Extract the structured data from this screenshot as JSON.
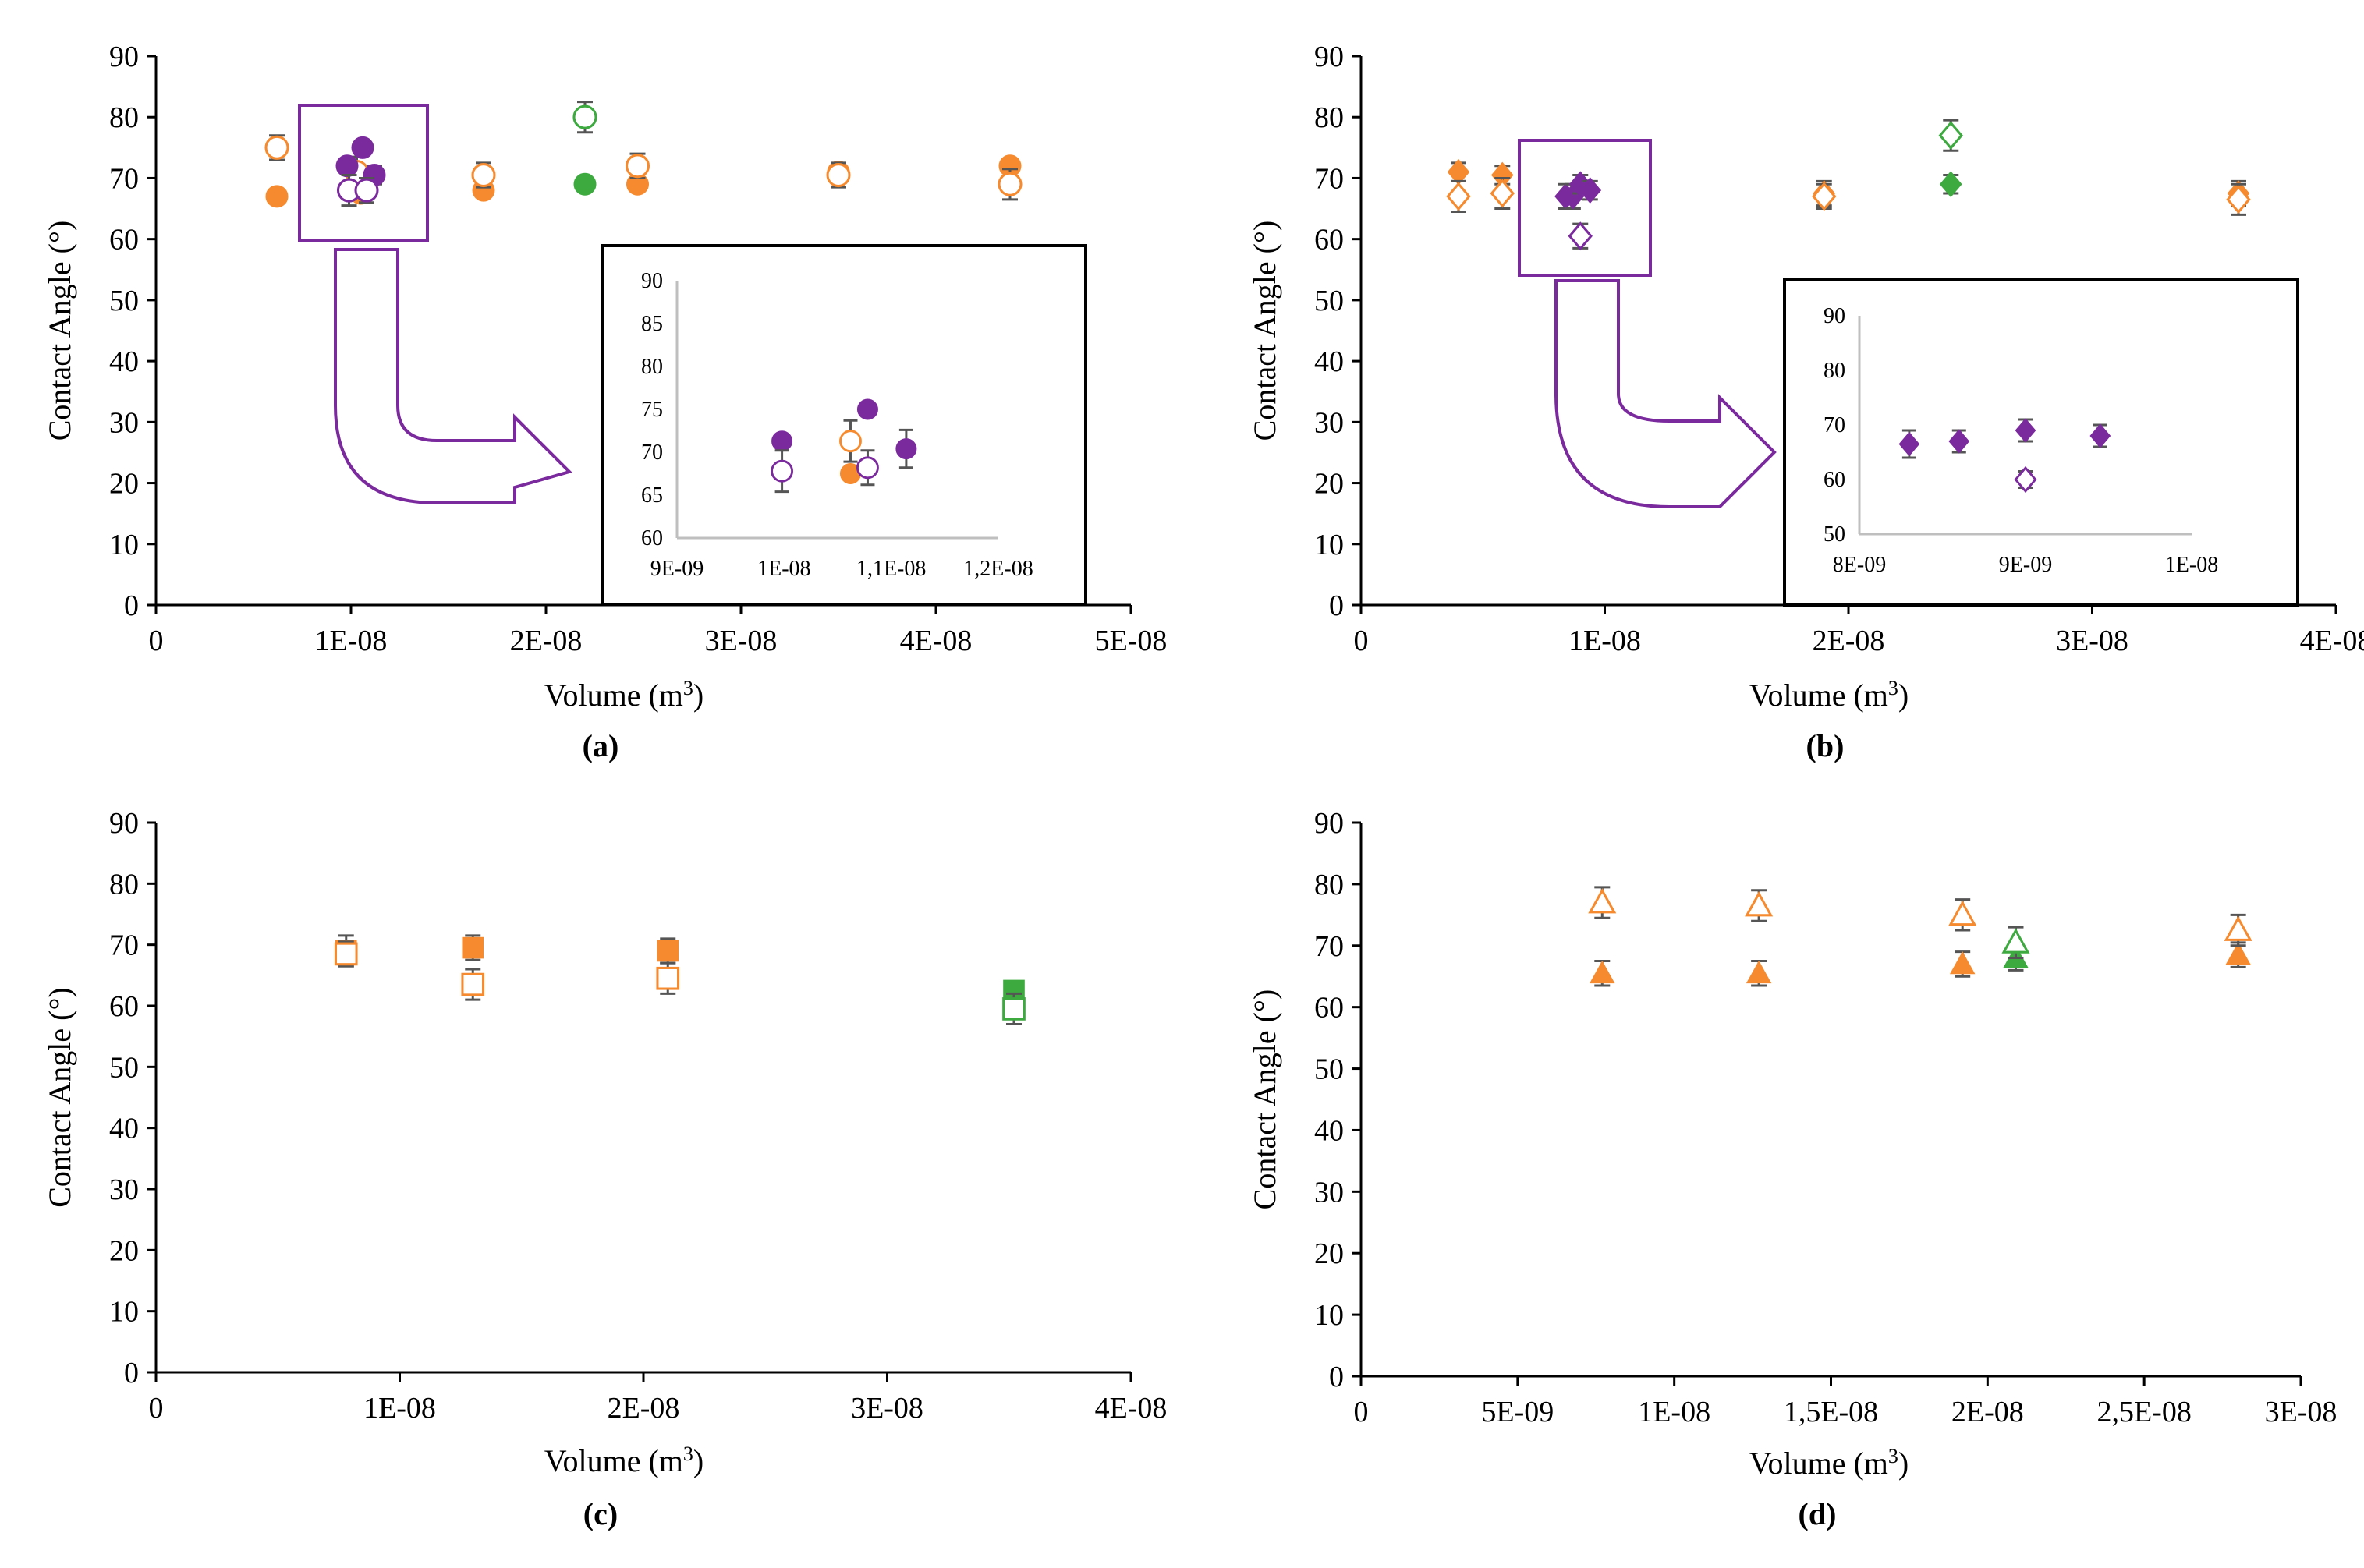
{
  "colors": {
    "orange": "#F68A2E",
    "green": "#3DAA3F",
    "purple": "#7B2A9E",
    "error": "#555555",
    "inset_axis": "#BFBFBF"
  },
  "chart_data": [
    {
      "panel": "a",
      "caption": "(a)",
      "type": "scatter",
      "marker": "circle",
      "xlabel_main": "Volume (m",
      "xlabel_sup": "3",
      "xlabel_end": ")",
      "ylabel": "Contact Angle (°)",
      "xlim": [
        0,
        5e-08
      ],
      "ylim": [
        0,
        90
      ],
      "xticks": [
        0,
        1e-08,
        2e-08,
        3e-08,
        4e-08,
        5e-08
      ],
      "xtick_labels": [
        "0",
        "1E-08",
        "2E-08",
        "3E-08",
        "4E-08",
        "5E-08"
      ],
      "yticks": [
        0,
        10,
        20,
        30,
        40,
        50,
        60,
        70,
        80,
        90
      ],
      "ytick_labels": [
        "0",
        "10",
        "20",
        "30",
        "40",
        "50",
        "60",
        "70",
        "80",
        "90"
      ],
      "series": [
        {
          "name": "orange-filled",
          "color": "orange",
          "filled": true,
          "points": [
            [
              6.2e-09,
              67,
              0
            ],
            [
              1.05e-08,
              67.5,
              0
            ],
            [
              1.68e-08,
              68,
              0
            ],
            [
              2.47e-08,
              69,
              0
            ],
            [
              3.5e-08,
              71,
              0
            ],
            [
              4.38e-08,
              72,
              0
            ]
          ]
        },
        {
          "name": "orange-open",
          "color": "orange",
          "filled": false,
          "points": [
            [
              6.2e-09,
              75,
              2
            ],
            [
              1.03e-08,
              71,
              2.5
            ],
            [
              1.68e-08,
              70.5,
              2
            ],
            [
              2.47e-08,
              72,
              2
            ],
            [
              3.5e-08,
              70.5,
              2
            ],
            [
              4.38e-08,
              69,
              2.5
            ]
          ]
        },
        {
          "name": "green-filled",
          "color": "green",
          "filled": true,
          "points": [
            [
              2.2e-08,
              69,
              0
            ]
          ]
        },
        {
          "name": "green-open",
          "color": "green",
          "filled": false,
          "points": [
            [
              2.2e-08,
              80,
              2.5
            ]
          ]
        },
        {
          "name": "purple-filled",
          "color": "purple",
          "filled": true,
          "points": [
            [
              9.8e-09,
              72,
              0
            ],
            [
              1.06e-08,
              75,
              0
            ],
            [
              1.12e-08,
              70.5,
              1.5
            ]
          ]
        },
        {
          "name": "purple-open",
          "color": "purple",
          "filled": false,
          "points": [
            [
              9.9e-09,
              68,
              2.5
            ],
            [
              1.08e-08,
              68,
              2
            ]
          ]
        }
      ],
      "inset": {
        "xlim": [
          9e-09,
          1.2e-08
        ],
        "ylim": [
          60,
          90
        ],
        "xticks": [
          9e-09,
          1e-08,
          1.1e-08,
          1.2e-08
        ],
        "xtick_labels": [
          "9E-09",
          "1E-08",
          "1,1E-08",
          "1,2E-08"
        ],
        "yticks": [
          60,
          65,
          70,
          75,
          80,
          85,
          90
        ],
        "ytick_labels": [
          "60",
          "65",
          "70",
          "75",
          "80",
          "85",
          "90"
        ],
        "series": [
          {
            "name": "orange-filled",
            "color": "orange",
            "filled": true,
            "points": [
              [
                1.062e-08,
                67.5,
                0
              ]
            ]
          },
          {
            "name": "orange-open",
            "color": "orange",
            "filled": false,
            "points": [
              [
                1.062e-08,
                71.3,
                2.4
              ]
            ]
          },
          {
            "name": "purple-filled",
            "color": "purple",
            "filled": true,
            "points": [
              [
                9.98e-09,
                71.3,
                0
              ],
              [
                1.078e-08,
                75,
                0.8
              ],
              [
                1.114e-08,
                70.4,
                2.2
              ]
            ]
          },
          {
            "name": "purple-open",
            "color": "purple",
            "filled": false,
            "points": [
              [
                9.98e-09,
                67.8,
                2.4
              ],
              [
                1.078e-08,
                68.2,
                2
              ]
            ]
          }
        ]
      }
    },
    {
      "panel": "b",
      "caption": "(b)",
      "type": "scatter",
      "marker": "diamond",
      "xlabel_main": "Volume (m",
      "xlabel_sup": "3",
      "xlabel_end": ")",
      "ylabel": "Contact Angle (°)",
      "xlim": [
        0,
        4e-08
      ],
      "ylim": [
        0,
        90
      ],
      "xticks": [
        0,
        1e-08,
        2e-08,
        3e-08,
        4e-08
      ],
      "xtick_labels": [
        "0",
        "1E-08",
        "2E-08",
        "3E-08",
        "4E-08"
      ],
      "yticks": [
        0,
        10,
        20,
        30,
        40,
        50,
        60,
        70,
        80,
        90
      ],
      "ytick_labels": [
        "0",
        "10",
        "20",
        "30",
        "40",
        "50",
        "60",
        "70",
        "80",
        "90"
      ],
      "series": [
        {
          "name": "orange-filled",
          "color": "orange",
          "filled": true,
          "points": [
            [
              4e-09,
              71,
              1.5
            ],
            [
              5.8e-09,
              70.5,
              1.5
            ],
            [
              1.9e-08,
              67.5,
              2
            ],
            [
              3.6e-08,
              67.5,
              2
            ]
          ]
        },
        {
          "name": "orange-open",
          "color": "orange",
          "filled": false,
          "points": [
            [
              4e-09,
              67,
              2.5
            ],
            [
              5.8e-09,
              67.5,
              2.5
            ],
            [
              1.9e-08,
              67,
              2
            ],
            [
              3.6e-08,
              66.5,
              2.5
            ]
          ]
        },
        {
          "name": "green-filled",
          "color": "green",
          "filled": true,
          "points": [
            [
              2.42e-08,
              69,
              1.5
            ]
          ]
        },
        {
          "name": "green-open",
          "color": "green",
          "filled": false,
          "points": [
            [
              2.42e-08,
              77,
              2.5
            ]
          ]
        },
        {
          "name": "purple-filled",
          "color": "purple",
          "filled": true,
          "points": [
            [
              8.4e-09,
              67,
              2
            ],
            [
              8.7e-09,
              67,
              2
            ],
            [
              9e-09,
              69,
              1.5
            ],
            [
              9.4e-09,
              68,
              1.5
            ]
          ]
        },
        {
          "name": "purple-open",
          "color": "purple",
          "filled": false,
          "points": [
            [
              9e-09,
              60.5,
              2
            ]
          ]
        }
      ],
      "inset": {
        "xlim": [
          8e-09,
          1e-08
        ],
        "ylim": [
          50,
          90
        ],
        "xticks": [
          8e-09,
          9e-09,
          1e-08
        ],
        "xtick_labels": [
          "8E-09",
          "9E-09",
          "1E-08"
        ],
        "yticks": [
          50,
          60,
          70,
          80,
          90
        ],
        "ytick_labels": [
          "50",
          "60",
          "70",
          "80",
          "90"
        ],
        "series": [
          {
            "name": "purple-filled",
            "color": "purple",
            "filled": true,
            "points": [
              [
                8.3e-09,
                66.5,
                2.5
              ],
              [
                8.6e-09,
                67,
                2
              ],
              [
                9e-09,
                69,
                2
              ],
              [
                9.45e-09,
                68,
                2
              ]
            ]
          },
          {
            "name": "purple-open",
            "color": "purple",
            "filled": false,
            "points": [
              [
                9e-09,
                60,
                1.5
              ]
            ]
          }
        ]
      }
    },
    {
      "panel": "c",
      "caption": "(c)",
      "type": "scatter",
      "marker": "square",
      "xlabel_main": "Volume (m",
      "xlabel_sup": "3",
      "xlabel_end": ")",
      "ylabel": "Contact Angle (°)",
      "xlim": [
        0,
        4e-08
      ],
      "ylim": [
        0,
        90
      ],
      "xticks": [
        0,
        1e-08,
        2e-08,
        3e-08,
        4e-08
      ],
      "xtick_labels": [
        "0",
        "1E-08",
        "2E-08",
        "3E-08",
        "4E-08"
      ],
      "yticks": [
        0,
        10,
        20,
        30,
        40,
        50,
        60,
        70,
        80,
        90
      ],
      "ytick_labels": [
        "0",
        "10",
        "20",
        "30",
        "40",
        "50",
        "60",
        "70",
        "80",
        "90"
      ],
      "series": [
        {
          "name": "orange-filled",
          "color": "orange",
          "filled": true,
          "points": [
            [
              7.8e-09,
              69,
              2.5
            ],
            [
              1.3e-08,
              69.5,
              2
            ],
            [
              2.1e-08,
              69,
              2
            ]
          ]
        },
        {
          "name": "orange-open",
          "color": "orange",
          "filled": false,
          "points": [
            [
              7.8e-09,
              68.5,
              2
            ],
            [
              1.3e-08,
              63.5,
              2.5
            ],
            [
              2.1e-08,
              64.5,
              2.5
            ]
          ]
        },
        {
          "name": "green-filled",
          "color": "green",
          "filled": true,
          "points": [
            [
              3.52e-08,
              62.5,
              0
            ]
          ]
        },
        {
          "name": "green-open",
          "color": "green",
          "filled": false,
          "points": [
            [
              3.52e-08,
              59.5,
              2.5
            ]
          ]
        }
      ]
    },
    {
      "panel": "d",
      "caption": "(d)",
      "type": "scatter",
      "marker": "triangle",
      "xlabel_main": "Volume (m",
      "xlabel_sup": "3",
      "xlabel_end": ")",
      "ylabel": "Contact Angle (°)",
      "xlim": [
        0,
        3e-08
      ],
      "ylim": [
        0,
        90
      ],
      "xticks": [
        0,
        5e-09,
        1e-08,
        1.5e-08,
        2e-08,
        2.5e-08,
        3e-08
      ],
      "xtick_labels": [
        "0",
        "5E-09",
        "1E-08",
        "1,5E-08",
        "2E-08",
        "2,5E-08",
        "3E-08"
      ],
      "yticks": [
        0,
        10,
        20,
        30,
        40,
        50,
        60,
        70,
        80,
        90
      ],
      "ytick_labels": [
        "0",
        "10",
        "20",
        "30",
        "40",
        "50",
        "60",
        "70",
        "80",
        "90"
      ],
      "series": [
        {
          "name": "orange-filled",
          "color": "orange",
          "filled": true,
          "points": [
            [
              7.7e-09,
              65.5,
              2
            ],
            [
              1.27e-08,
              65.5,
              2
            ],
            [
              1.92e-08,
              67,
              2
            ],
            [
              2.8e-08,
              68.5,
              2
            ]
          ]
        },
        {
          "name": "orange-open",
          "color": "orange",
          "filled": false,
          "points": [
            [
              7.7e-09,
              77,
              2.5
            ],
            [
              1.27e-08,
              76.5,
              2.5
            ],
            [
              1.92e-08,
              75,
              2.5
            ],
            [
              2.8e-08,
              72.5,
              2.5
            ]
          ]
        },
        {
          "name": "green-filled",
          "color": "green",
          "filled": true,
          "points": [
            [
              2.09e-08,
              68,
              2
            ]
          ]
        },
        {
          "name": "green-open",
          "color": "green",
          "filled": false,
          "points": [
            [
              2.09e-08,
              70.5,
              2.5
            ]
          ]
        }
      ]
    }
  ]
}
